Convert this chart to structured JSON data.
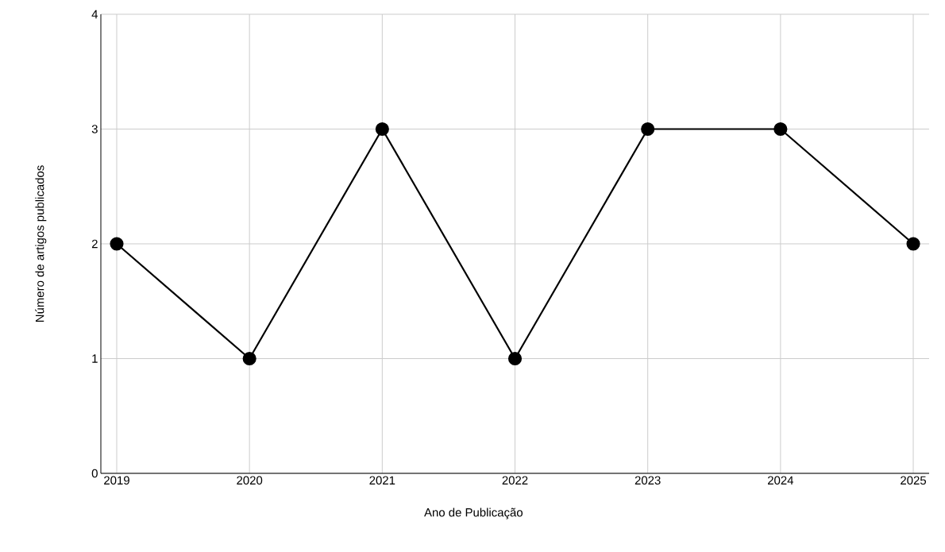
{
  "chart_data": {
    "type": "line",
    "xlabel": "Ano de Publicação",
    "ylabel": "Número de artigos publicados",
    "categories": [
      "2019",
      "2020",
      "2021",
      "2022",
      "2023",
      "2024",
      "2025"
    ],
    "values": [
      2,
      1,
      3,
      1,
      3,
      3,
      2
    ],
    "color": "#000000",
    "marker": "circle",
    "line_style": "solid",
    "ylim": [
      0,
      4
    ],
    "yticks": [
      0,
      1,
      2,
      3,
      4
    ],
    "grid": true
  }
}
